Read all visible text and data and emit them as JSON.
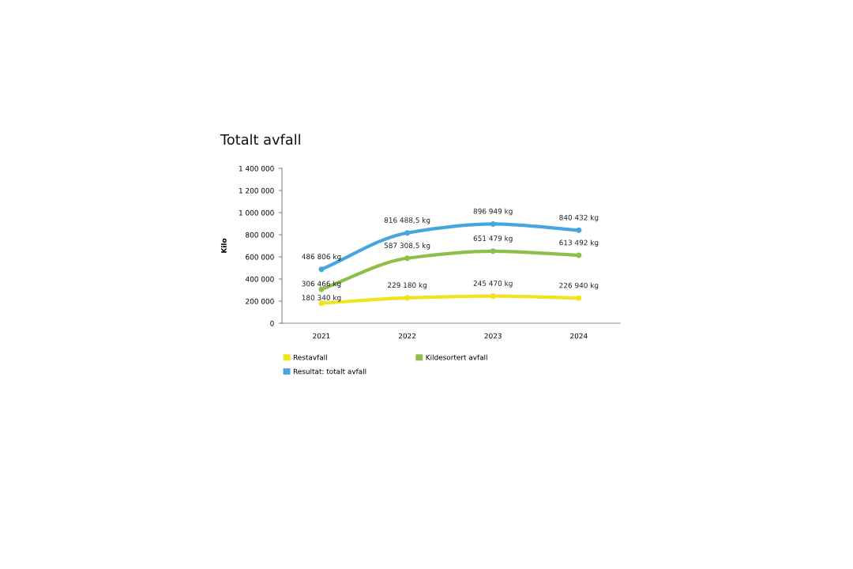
{
  "chart_data": {
    "type": "line",
    "title": "Totalt avfall",
    "ylabel": "Kilo",
    "categories": [
      "2021",
      "2022",
      "2023",
      "2024"
    ],
    "series": [
      {
        "name": "Restavfall",
        "color": "#f2e41c",
        "values": [
          180340,
          229180,
          245470,
          226940
        ],
        "value_labels": [
          "180 340 kg",
          "229 180 kg",
          "245 470 kg",
          "226 940 kg"
        ]
      },
      {
        "name": "Kildesortert avfall",
        "color": "#8dbf4a",
        "values": [
          306466,
          587308.5,
          651479,
          613492
        ],
        "value_labels": [
          "306 466 kg",
          "587 308,5 kg",
          "651 479 kg",
          "613 492 kg"
        ]
      },
      {
        "name": "Resultat: totalt avfall",
        "color": "#46a6dd",
        "values": [
          486806,
          816488.5,
          896949,
          840432
        ],
        "value_labels": [
          "486 806 kg",
          "816 488,5 kg",
          "896 949 kg",
          "840 432 kg"
        ]
      }
    ],
    "ylim": [
      0,
      1400000
    ],
    "yticks": [
      0,
      {
        "value": 200000,
        "label": "200 000"
      },
      {
        "value": 400000,
        "label": "400 000"
      },
      {
        "value": 600000,
        "label": "600 000"
      },
      {
        "value": 800000,
        "label": "800 000"
      },
      {
        "value": 1000000,
        "label": "1 000 000"
      },
      {
        "value": 1200000,
        "label": "1 200 000"
      },
      {
        "value": 1400000,
        "label": "1 400 000"
      }
    ],
    "legend": "bottom",
    "marker": "circle",
    "line_style": "solid"
  }
}
